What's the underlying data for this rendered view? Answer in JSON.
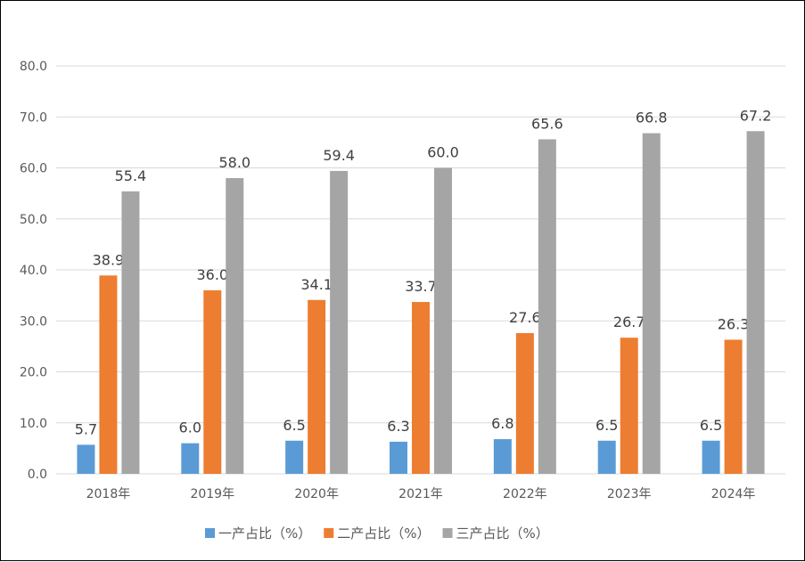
{
  "chart_data": {
    "type": "bar",
    "title": "",
    "xlabel": "",
    "ylabel": "",
    "categories": [
      "2018年",
      "2019年",
      "2020年",
      "2021年",
      "2022年",
      "2023年",
      "2024年"
    ],
    "series": [
      {
        "name": "一产占比（%）",
        "color": "#5B9BD5",
        "values": [
          5.7,
          6.0,
          6.5,
          6.3,
          6.8,
          6.5,
          6.5
        ]
      },
      {
        "name": "二产占比（%）",
        "color": "#ED7D31",
        "values": [
          38.9,
          36.0,
          34.1,
          33.7,
          27.6,
          26.7,
          26.3
        ]
      },
      {
        "name": "三产占比（%）",
        "color": "#A5A5A5",
        "values": [
          55.4,
          58.0,
          59.4,
          60.0,
          65.6,
          66.8,
          67.2
        ]
      }
    ],
    "ylim": [
      0,
      80
    ],
    "yticks": [
      "0.0",
      "10.0",
      "20.0",
      "30.0",
      "40.0",
      "50.0",
      "60.0",
      "70.0",
      "80.0"
    ],
    "grid": true,
    "legend": "bottom",
    "data_labels": true
  }
}
